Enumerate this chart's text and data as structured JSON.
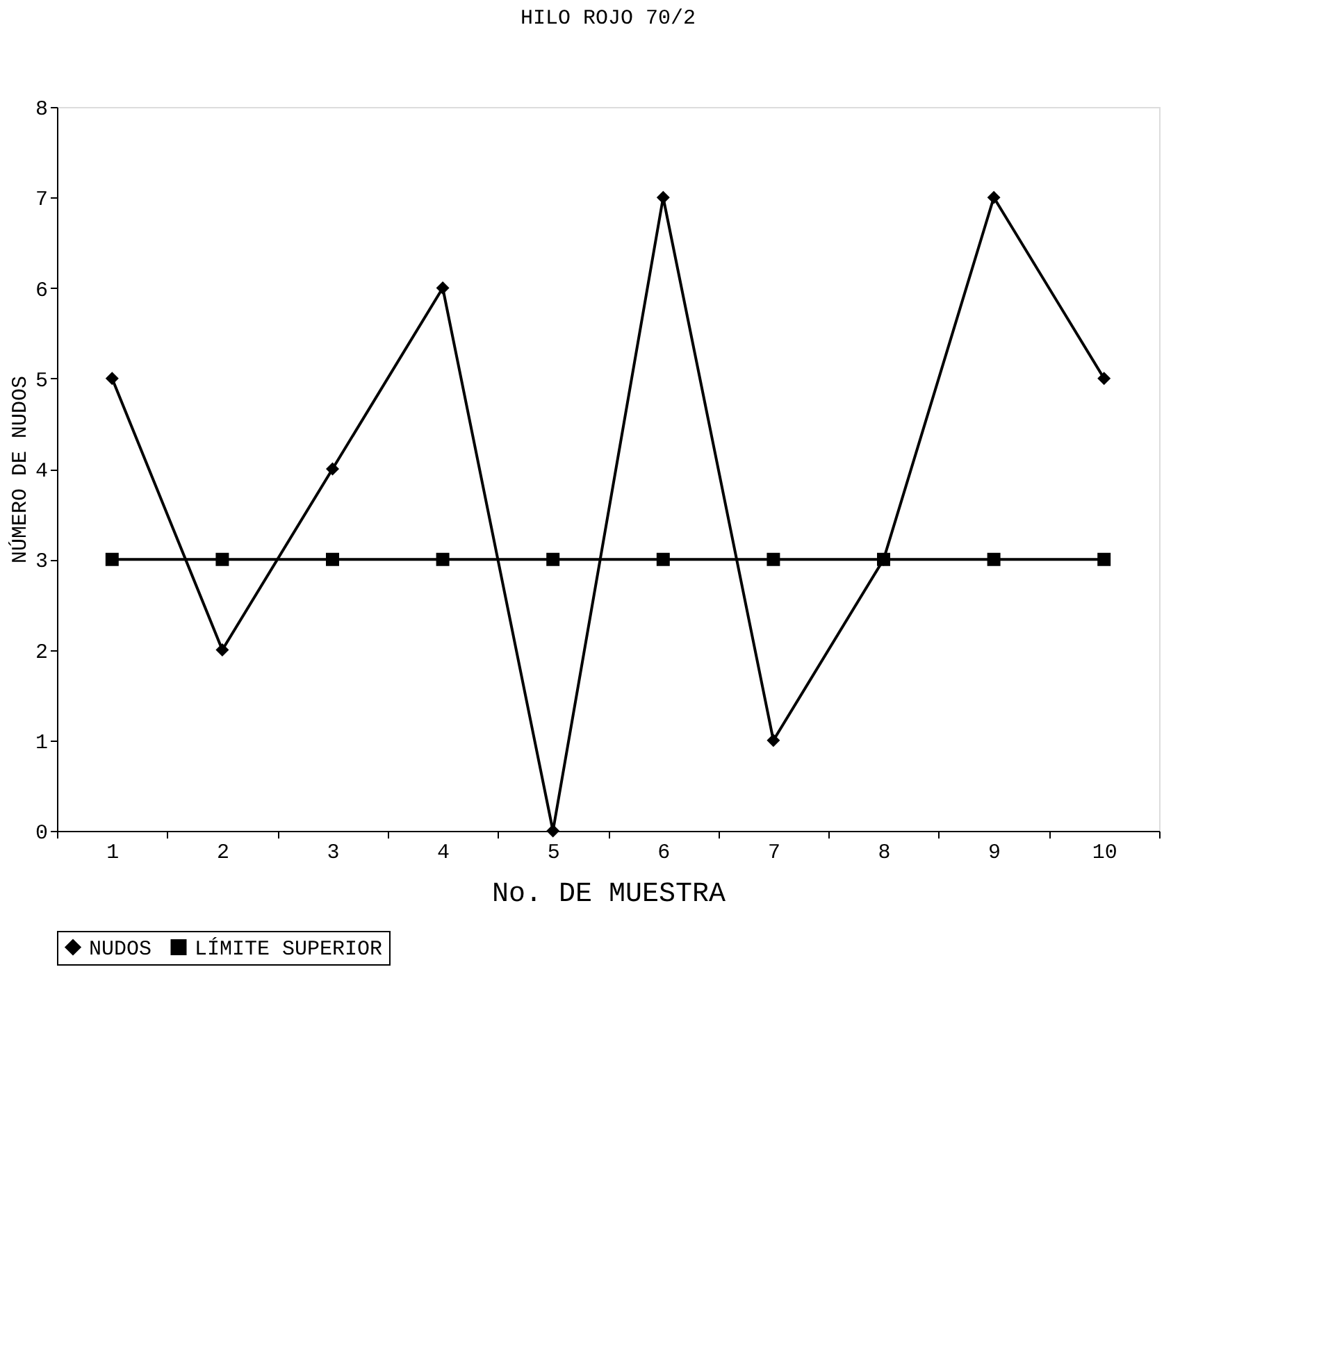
{
  "chart_data": {
    "type": "line",
    "title": "HILO ROJO 70/2",
    "xlabel": "No. DE MUESTRA",
    "ylabel": "NÚMERO DE NUDOS",
    "categories": [
      "1",
      "2",
      "3",
      "4",
      "5",
      "6",
      "7",
      "8",
      "9",
      "10"
    ],
    "series": [
      {
        "name": "NUDOS",
        "color": "#000000",
        "marker": "diamond",
        "values": [
          5,
          2,
          4,
          6,
          0,
          7,
          1,
          3,
          7,
          5
        ]
      },
      {
        "name": "LÍMITE SUPERIOR",
        "color": "#000000",
        "marker": "square",
        "values": [
          3,
          3,
          3,
          3,
          3,
          3,
          3,
          3,
          3,
          3
        ]
      }
    ],
    "ylim": [
      0,
      8
    ],
    "yticks": [
      0,
      1,
      2,
      3,
      4,
      5,
      6,
      7,
      8
    ],
    "grid": false,
    "legend": "bottom",
    "line_style": "solid"
  }
}
